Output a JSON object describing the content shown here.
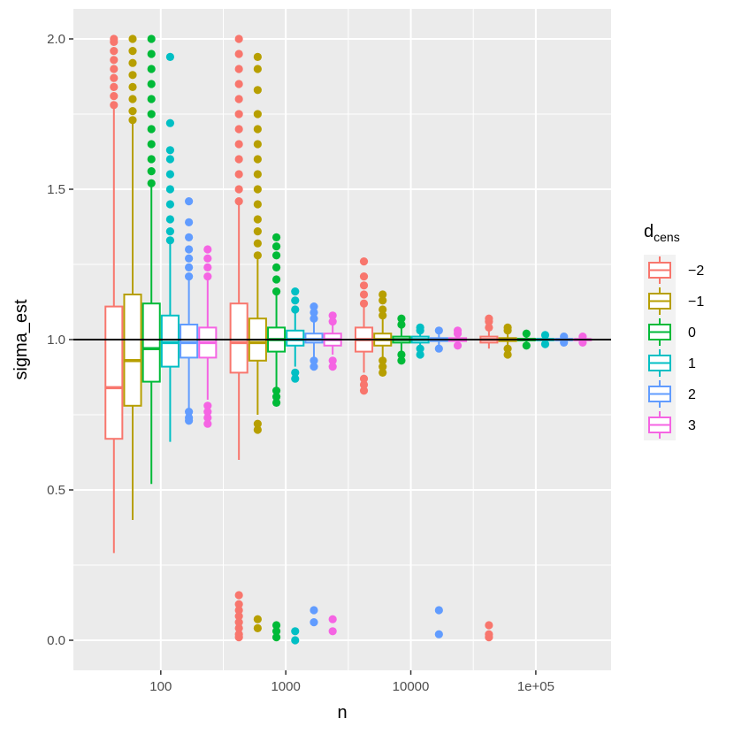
{
  "chart_data": {
    "type": "boxplot",
    "xlabel": "n",
    "ylabel": "sigma_est",
    "x_scale": "log10",
    "xlim": [
      20,
      400000
    ],
    "ylim": [
      -0.1,
      2.1
    ],
    "x_ticks": [
      {
        "value": 100,
        "label": "100"
      },
      {
        "value": 1000,
        "label": "1000"
      },
      {
        "value": 10000,
        "label": "10000"
      },
      {
        "value": 100000,
        "label": "1e+05"
      }
    ],
    "y_ticks": [
      {
        "value": 0.0,
        "label": "0.0"
      },
      {
        "value": 0.5,
        "label": "0.5"
      },
      {
        "value": 1.0,
        "label": "1.0"
      },
      {
        "value": 1.5,
        "label": "1.5"
      },
      {
        "value": 2.0,
        "label": "2.0"
      }
    ],
    "reference_line": {
      "y": 1.0,
      "color": "#000000"
    },
    "legend": {
      "title_main": "d",
      "title_sub": "cens",
      "position": "right",
      "entries": [
        {
          "label": "−2",
          "color": "#F8766D"
        },
        {
          "label": "−1",
          "color": "#B79F00"
        },
        {
          "label": "0",
          "color": "#00BA38"
        },
        {
          "label": "1",
          "color": "#00BFC4"
        },
        {
          "label": "2",
          "color": "#619CFF"
        },
        {
          "label": "3",
          "color": "#F564E3"
        }
      ]
    },
    "groups": [
      {
        "n": 100,
        "boxes": [
          {
            "dcens": -2,
            "whisker_low": 0.29,
            "q1": 0.67,
            "median": 0.84,
            "q3": 1.11,
            "whisker_high": 1.77,
            "outliers": [
              1.78,
              1.81,
              1.84,
              1.87,
              1.9,
              1.93,
              1.96,
              1.99,
              2.0
            ]
          },
          {
            "dcens": -1,
            "whisker_low": 0.4,
            "q1": 0.78,
            "median": 0.93,
            "q3": 1.15,
            "whisker_high": 1.72,
            "outliers": [
              1.73,
              1.76,
              1.8,
              1.84,
              1.88,
              1.92,
              1.96,
              2.0
            ]
          },
          {
            "dcens": 0,
            "whisker_low": 0.52,
            "q1": 0.86,
            "median": 0.97,
            "q3": 1.12,
            "whisker_high": 1.51,
            "outliers": [
              1.52,
              1.56,
              1.6,
              1.65,
              1.7,
              1.75,
              1.8,
              1.85,
              1.9,
              1.95,
              2.0
            ]
          },
          {
            "dcens": 1,
            "whisker_low": 0.66,
            "q1": 0.91,
            "median": 0.99,
            "q3": 1.08,
            "whisker_high": 1.32,
            "outliers": [
              1.33,
              1.36,
              1.4,
              1.45,
              1.5,
              1.55,
              1.6,
              1.63,
              1.72,
              1.94
            ]
          },
          {
            "dcens": 2,
            "whisker_low": 0.77,
            "q1": 0.94,
            "median": 0.99,
            "q3": 1.05,
            "whisker_high": 1.2,
            "outliers": [
              0.73,
              0.74,
              0.76,
              1.21,
              1.24,
              1.27,
              1.3,
              1.34,
              1.39,
              1.46
            ]
          },
          {
            "dcens": 3,
            "whisker_low": 0.8,
            "q1": 0.94,
            "median": 0.99,
            "q3": 1.04,
            "whisker_high": 1.2,
            "outliers": [
              0.72,
              0.74,
              0.76,
              0.78,
              1.21,
              1.24,
              1.27,
              1.3
            ]
          }
        ]
      },
      {
        "n": 1000,
        "boxes": [
          {
            "dcens": -2,
            "whisker_low": 0.6,
            "q1": 0.89,
            "median": 0.99,
            "q3": 1.12,
            "whisker_high": 1.45,
            "outliers": [
              0.01,
              0.02,
              0.04,
              0.06,
              0.08,
              0.1,
              0.12,
              0.15,
              1.46,
              1.5,
              1.55,
              1.6,
              1.65,
              1.7,
              1.75,
              1.8,
              1.85,
              1.9,
              1.95,
              2.0
            ]
          },
          {
            "dcens": -1,
            "whisker_low": 0.75,
            "q1": 0.93,
            "median": 0.99,
            "q3": 1.07,
            "whisker_high": 1.27,
            "outliers": [
              0.04,
              0.07,
              0.7,
              0.72,
              1.28,
              1.32,
              1.36,
              1.4,
              1.45,
              1.5,
              1.55,
              1.6,
              1.65,
              1.7,
              1.75,
              1.83,
              1.9,
              1.94
            ]
          },
          {
            "dcens": 0,
            "whisker_low": 0.84,
            "q1": 0.96,
            "median": 1.0,
            "q3": 1.04,
            "whisker_high": 1.15,
            "outliers": [
              0.01,
              0.03,
              0.05,
              0.79,
              0.81,
              0.83,
              1.16,
              1.2,
              1.24,
              1.28,
              1.31,
              1.34
            ]
          },
          {
            "dcens": 1,
            "whisker_low": 0.91,
            "q1": 0.98,
            "median": 1.0,
            "q3": 1.03,
            "whisker_high": 1.09,
            "outliers": [
              0.0,
              0.03,
              0.87,
              0.89,
              1.1,
              1.13,
              1.16
            ]
          },
          {
            "dcens": 2,
            "whisker_low": 0.94,
            "q1": 0.99,
            "median": 1.0,
            "q3": 1.02,
            "whisker_high": 1.06,
            "outliers": [
              0.06,
              0.1,
              0.91,
              0.93,
              1.07,
              1.09,
              1.11
            ]
          },
          {
            "dcens": 3,
            "whisker_low": 0.95,
            "q1": 0.98,
            "median": 1.0,
            "q3": 1.02,
            "whisker_high": 1.05,
            "outliers": [
              0.03,
              0.07,
              0.91,
              0.93,
              1.06,
              1.08
            ]
          }
        ]
      },
      {
        "n": 10000,
        "boxes": [
          {
            "dcens": -2,
            "whisker_low": 0.89,
            "q1": 0.96,
            "median": 1.0,
            "q3": 1.04,
            "whisker_high": 1.11,
            "outliers": [
              0.83,
              0.85,
              0.87,
              1.12,
              1.15,
              1.18,
              1.21,
              1.26
            ]
          },
          {
            "dcens": -1,
            "whisker_low": 0.94,
            "q1": 0.98,
            "median": 1.0,
            "q3": 1.02,
            "whisker_high": 1.07,
            "outliers": [
              0.89,
              0.91,
              0.93,
              1.08,
              1.1,
              1.13,
              1.15
            ]
          },
          {
            "dcens": 0,
            "whisker_low": 0.96,
            "q1": 0.99,
            "median": 1.0,
            "q3": 1.01,
            "whisker_high": 1.04,
            "outliers": [
              0.93,
              0.95,
              1.05,
              1.07
            ]
          },
          {
            "dcens": 1,
            "whisker_low": 0.98,
            "q1": 0.99,
            "median": 1.0,
            "q3": 1.01,
            "whisker_high": 1.02,
            "outliers": [
              0.95,
              0.97,
              1.03,
              1.04
            ]
          },
          {
            "dcens": 2,
            "whisker_low": 0.98,
            "q1": 0.995,
            "median": 1.0,
            "q3": 1.005,
            "whisker_high": 1.02,
            "outliers": [
              0.02,
              0.1,
              0.97,
              1.03
            ]
          },
          {
            "dcens": 3,
            "whisker_low": 0.985,
            "q1": 0.995,
            "median": 1.0,
            "q3": 1.005,
            "whisker_high": 1.015,
            "outliers": [
              0.98,
              1.02,
              1.03
            ]
          }
        ]
      },
      {
        "n": 100000,
        "boxes": [
          {
            "dcens": -2,
            "whisker_low": 0.97,
            "q1": 0.99,
            "median": 1.0,
            "q3": 1.01,
            "whisker_high": 1.03,
            "outliers": [
              0.01,
              0.02,
              0.05,
              1.04,
              1.06,
              1.07
            ]
          },
          {
            "dcens": -1,
            "whisker_low": 0.98,
            "q1": 0.995,
            "median": 1.0,
            "q3": 1.005,
            "whisker_high": 1.02,
            "outliers": [
              0.95,
              0.97,
              1.03,
              1.04
            ]
          },
          {
            "dcens": 0,
            "whisker_low": 0.99,
            "q1": 0.997,
            "median": 1.0,
            "q3": 1.003,
            "whisker_high": 1.01,
            "outliers": [
              0.98,
              1.02
            ]
          },
          {
            "dcens": 1,
            "whisker_low": 0.99,
            "q1": 0.998,
            "median": 1.0,
            "q3": 1.002,
            "whisker_high": 1.01,
            "outliers": [
              0.985,
              1.015
            ]
          },
          {
            "dcens": 2,
            "whisker_low": 0.995,
            "q1": 0.998,
            "median": 1.0,
            "q3": 1.002,
            "whisker_high": 1.005,
            "outliers": [
              0.99,
              1.01
            ]
          },
          {
            "dcens": 3,
            "whisker_low": 0.995,
            "q1": 0.999,
            "median": 1.0,
            "q3": 1.001,
            "whisker_high": 1.005,
            "outliers": [
              0.99,
              1.01
            ]
          }
        ]
      }
    ]
  }
}
